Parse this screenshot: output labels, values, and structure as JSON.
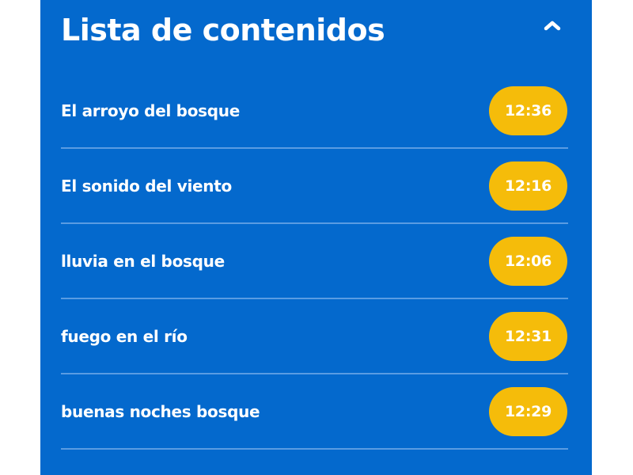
{
  "panel": {
    "title": "Lista de contenidos",
    "collapse_icon": "chevron-up-icon",
    "background": "#0469cd",
    "accent": "#f5bc0a"
  },
  "items": [
    {
      "title": "El arroyo del bosque",
      "duration": "12:36"
    },
    {
      "title": "El sonido del viento",
      "duration": "12:16"
    },
    {
      "title": "lluvia en el bosque",
      "duration": "12:06"
    },
    {
      "title": "fuego en el río",
      "duration": "12:31"
    },
    {
      "title": "buenas noches bosque",
      "duration": "12:29"
    }
  ]
}
